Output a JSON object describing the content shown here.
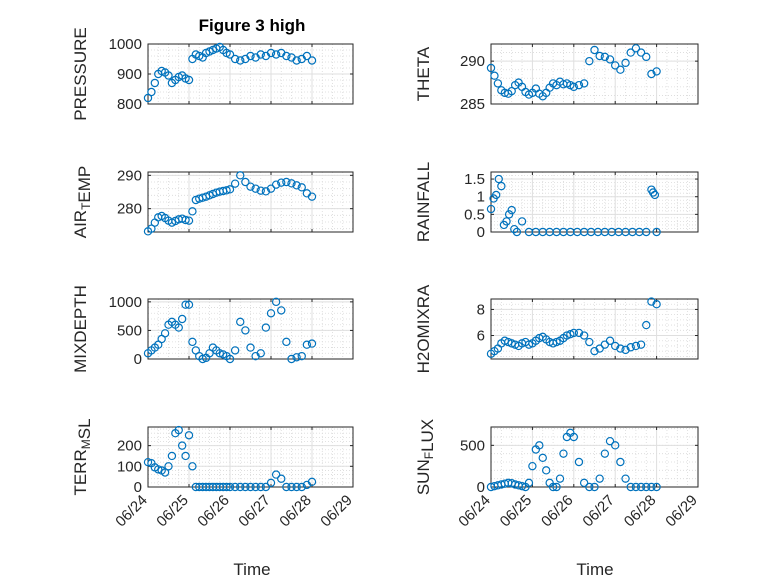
{
  "figure": {
    "title": "Figure 3 high",
    "marker_color": "#0072BD",
    "time_ticks": [
      "06/24",
      "06/25",
      "06/26",
      "06/27",
      "06/28",
      "06/29"
    ],
    "xlabel": "Time"
  },
  "chart_data": [
    {
      "type": "scatter",
      "name": "pressure",
      "ylabel": "PRESSURE",
      "yticks": [
        800,
        900,
        1000
      ],
      "ytick_labels": [
        "800",
        "900",
        "1000"
      ],
      "ylim": [
        800,
        1000
      ],
      "xlim": [
        "06/24",
        "06/29"
      ],
      "grid": true,
      "minor_grid": true,
      "x": [
        "06/24 00:00",
        "06/24 02:00",
        "06/24 04:00",
        "06/24 06:00",
        "06/24 08:00",
        "06/24 10:00",
        "06/24 12:00",
        "06/24 14:00",
        "06/24 16:00",
        "06/24 18:00",
        "06/24 20:00",
        "06/24 22:00",
        "06/25 00:00",
        "06/25 02:00",
        "06/25 04:00",
        "06/25 06:00",
        "06/25 08:00",
        "06/25 10:00",
        "06/25 12:00",
        "06/25 14:00",
        "06/25 16:00",
        "06/25 18:00",
        "06/25 20:00",
        "06/25 22:00",
        "06/26 00:00",
        "06/26 03:00",
        "06/26 06:00",
        "06/26 09:00",
        "06/26 12:00",
        "06/26 15:00",
        "06/26 18:00",
        "06/26 21:00",
        "06/27 00:00",
        "06/27 03:00",
        "06/27 06:00",
        "06/27 09:00",
        "06/27 12:00",
        "06/27 15:00",
        "06/27 18:00",
        "06/27 21:00",
        "06/28 00:00"
      ],
      "y": [
        820,
        840,
        870,
        900,
        910,
        905,
        895,
        870,
        880,
        890,
        895,
        885,
        880,
        950,
        965,
        960,
        955,
        970,
        975,
        980,
        985,
        990,
        980,
        970,
        965,
        950,
        945,
        950,
        960,
        955,
        965,
        960,
        970,
        965,
        970,
        960,
        955,
        945,
        950,
        960,
        945
      ]
    },
    {
      "type": "scatter",
      "name": "theta",
      "ylabel": "THETA",
      "yticks": [
        285,
        290
      ],
      "ytick_labels": [
        "285",
        "290"
      ],
      "ylim": [
        285,
        292
      ],
      "xlim": [
        "06/24",
        "06/29"
      ],
      "grid": true,
      "minor_grid": true,
      "x": [
        "06/24 00:00",
        "06/24 02:00",
        "06/24 04:00",
        "06/24 06:00",
        "06/24 08:00",
        "06/24 10:00",
        "06/24 12:00",
        "06/24 14:00",
        "06/24 16:00",
        "06/24 18:00",
        "06/24 20:00",
        "06/24 22:00",
        "06/25 00:00",
        "06/25 02:00",
        "06/25 04:00",
        "06/25 06:00",
        "06/25 08:00",
        "06/25 10:00",
        "06/25 12:00",
        "06/25 14:00",
        "06/25 16:00",
        "06/25 18:00",
        "06/25 20:00",
        "06/25 22:00",
        "06/26 00:00",
        "06/26 03:00",
        "06/26 06:00",
        "06/26 09:00",
        "06/26 12:00",
        "06/26 15:00",
        "06/26 18:00",
        "06/26 21:00",
        "06/27 00:00",
        "06/27 03:00",
        "06/27 06:00",
        "06/27 09:00",
        "06/27 12:00",
        "06/27 15:00",
        "06/27 18:00",
        "06/27 21:00",
        "06/28 00:00"
      ],
      "y": [
        289.2,
        288.3,
        287.4,
        286.6,
        286.3,
        286.2,
        286.5,
        287.2,
        287.5,
        287.0,
        286.4,
        286.1,
        286.3,
        286.8,
        286.2,
        285.9,
        286.3,
        286.9,
        287.4,
        287.2,
        287.6,
        287.3,
        287.4,
        287.2,
        287.0,
        287.2,
        287.4,
        290.0,
        291.3,
        290.6,
        290.5,
        290.2,
        289.5,
        289.0,
        289.8,
        291.0,
        291.5,
        291.0,
        290.5,
        288.5,
        288.8
      ]
    },
    {
      "type": "scatter",
      "name": "air_temp",
      "ylabel": "AIR_TEMP",
      "yticks": [
        280,
        290
      ],
      "ytick_labels": [
        "280",
        "290"
      ],
      "ylim": [
        273,
        291
      ],
      "xlim": [
        "06/24",
        "06/29"
      ],
      "grid": true,
      "minor_grid": true,
      "x": [
        "06/24 00:00",
        "06/24 02:00",
        "06/24 04:00",
        "06/24 06:00",
        "06/24 08:00",
        "06/24 10:00",
        "06/24 12:00",
        "06/24 14:00",
        "06/24 16:00",
        "06/24 18:00",
        "06/24 20:00",
        "06/24 22:00",
        "06/25 00:00",
        "06/25 02:00",
        "06/25 04:00",
        "06/25 06:00",
        "06/25 08:00",
        "06/25 10:00",
        "06/25 12:00",
        "06/25 14:00",
        "06/25 16:00",
        "06/25 18:00",
        "06/25 20:00",
        "06/25 22:00",
        "06/26 00:00",
        "06/26 03:00",
        "06/26 06:00",
        "06/26 09:00",
        "06/26 12:00",
        "06/26 15:00",
        "06/26 18:00",
        "06/26 21:00",
        "06/27 00:00",
        "06/27 03:00",
        "06/27 06:00",
        "06/27 09:00",
        "06/27 12:00",
        "06/27 15:00",
        "06/27 18:00",
        "06/27 21:00",
        "06/28 00:00"
      ],
      "y": [
        273.2,
        274.0,
        275.8,
        277.4,
        277.8,
        277.2,
        276.4,
        275.8,
        276.3,
        276.8,
        277.0,
        276.6,
        276.4,
        279.2,
        282.6,
        283.0,
        283.3,
        283.6,
        284.0,
        284.4,
        284.8,
        285.1,
        285.3,
        285.5,
        285.8,
        287.5,
        290.0,
        288.0,
        286.6,
        286.0,
        285.4,
        285.2,
        286.0,
        287.2,
        287.8,
        288.0,
        287.6,
        287.0,
        286.4,
        284.6,
        283.6
      ]
    },
    {
      "type": "scatter",
      "name": "rainfall",
      "ylabel": "RAINFALL",
      "yticks": [
        0,
        0.5,
        1,
        1.5
      ],
      "ytick_labels": [
        "0",
        "0.5",
        "1",
        "1.5"
      ],
      "ylim": [
        0,
        1.7
      ],
      "xlim": [
        "06/24",
        "06/29"
      ],
      "grid": true,
      "minor_grid": true,
      "x": [
        "06/24 00:00",
        "06/24 01:30",
        "06/24 03:00",
        "06/24 04:30",
        "06/24 06:00",
        "06/24 07:30",
        "06/24 09:00",
        "06/24 10:30",
        "06/24 12:00",
        "06/24 13:30",
        "06/24 15:00",
        "06/24 18:00",
        "06/24 22:00",
        "06/25 02:00",
        "06/25 06:00",
        "06/25 10:00",
        "06/25 14:00",
        "06/25 18:00",
        "06/25 22:00",
        "06/26 02:00",
        "06/26 06:00",
        "06/26 10:00",
        "06/26 14:00",
        "06/26 18:00",
        "06/26 22:00",
        "06/27 02:00",
        "06/27 06:00",
        "06/27 10:00",
        "06/27 14:00",
        "06/27 18:00",
        "06/27 21:00",
        "06/27 22:00",
        "06/27 23:00",
        "06/28 00:00"
      ],
      "y": [
        0.65,
        0.95,
        1.05,
        1.5,
        1.3,
        0.2,
        0.3,
        0.5,
        0.62,
        0.08,
        0.0,
        0.3,
        0.0,
        0.0,
        0.0,
        0.0,
        0.0,
        0.0,
        0.0,
        0.0,
        0.0,
        0.0,
        0.0,
        0.0,
        0.0,
        0.0,
        0.0,
        0.0,
        0.0,
        0.0,
        1.2,
        1.12,
        1.05,
        0.0
      ]
    },
    {
      "type": "scatter",
      "name": "mixdepth",
      "ylabel": "MIXDEPTH",
      "yticks": [
        0,
        500,
        1000
      ],
      "ytick_labels": [
        "0",
        "500",
        "1000"
      ],
      "ylim": [
        0,
        1050
      ],
      "xlim": [
        "06/24",
        "06/29"
      ],
      "grid": true,
      "minor_grid": true,
      "x": [
        "06/24 00:00",
        "06/24 02:00",
        "06/24 04:00",
        "06/24 06:00",
        "06/24 08:00",
        "06/24 10:00",
        "06/24 12:00",
        "06/24 14:00",
        "06/24 16:00",
        "06/24 18:00",
        "06/24 20:00",
        "06/24 22:00",
        "06/25 00:00",
        "06/25 02:00",
        "06/25 04:00",
        "06/25 06:00",
        "06/25 08:00",
        "06/25 10:00",
        "06/25 12:00",
        "06/25 14:00",
        "06/25 16:00",
        "06/25 18:00",
        "06/25 20:00",
        "06/25 22:00",
        "06/26 00:00",
        "06/26 03:00",
        "06/26 06:00",
        "06/26 09:00",
        "06/26 12:00",
        "06/26 15:00",
        "06/26 18:00",
        "06/26 21:00",
        "06/27 00:00",
        "06/27 03:00",
        "06/27 06:00",
        "06/27 09:00",
        "06/27 12:00",
        "06/27 15:00",
        "06/27 18:00",
        "06/27 21:00",
        "06/28 00:00"
      ],
      "y": [
        100,
        150,
        200,
        250,
        350,
        450,
        600,
        650,
        600,
        550,
        700,
        950,
        950,
        300,
        150,
        50,
        0,
        20,
        100,
        200,
        150,
        100,
        80,
        50,
        0,
        150,
        650,
        500,
        200,
        50,
        100,
        550,
        800,
        1000,
        850,
        300,
        0,
        30,
        50,
        250,
        270
      ]
    },
    {
      "type": "scatter",
      "name": "h2omixra",
      "ylabel": "H2OMIXRA",
      "yticks": [
        6,
        8
      ],
      "ytick_labels": [
        "6",
        "8"
      ],
      "ylim": [
        4.2,
        8.8
      ],
      "xlim": [
        "06/24",
        "06/29"
      ],
      "grid": true,
      "minor_grid": true,
      "x": [
        "06/24 00:00",
        "06/24 02:00",
        "06/24 04:00",
        "06/24 06:00",
        "06/24 08:00",
        "06/24 10:00",
        "06/24 12:00",
        "06/24 14:00",
        "06/24 16:00",
        "06/24 18:00",
        "06/24 20:00",
        "06/24 22:00",
        "06/25 00:00",
        "06/25 02:00",
        "06/25 04:00",
        "06/25 06:00",
        "06/25 08:00",
        "06/25 10:00",
        "06/25 12:00",
        "06/25 14:00",
        "06/25 16:00",
        "06/25 18:00",
        "06/25 20:00",
        "06/25 22:00",
        "06/26 00:00",
        "06/26 03:00",
        "06/26 06:00",
        "06/26 09:00",
        "06/26 12:00",
        "06/26 15:00",
        "06/26 18:00",
        "06/26 21:00",
        "06/27 00:00",
        "06/27 03:00",
        "06/27 06:00",
        "06/27 09:00",
        "06/27 12:00",
        "06/27 15:00",
        "06/27 18:00",
        "06/27 21:00",
        "06/28 00:00"
      ],
      "y": [
        4.6,
        4.8,
        5.0,
        5.4,
        5.6,
        5.5,
        5.4,
        5.3,
        5.2,
        5.4,
        5.5,
        5.3,
        5.4,
        5.6,
        5.8,
        5.9,
        5.7,
        5.5,
        5.4,
        5.5,
        5.6,
        5.8,
        6.0,
        6.1,
        6.2,
        6.2,
        6.0,
        5.5,
        4.8,
        5.0,
        5.3,
        5.6,
        5.2,
        5.0,
        4.9,
        5.1,
        5.2,
        5.3,
        6.8,
        8.6,
        8.4
      ]
    },
    {
      "type": "scatter",
      "name": "terr_msl",
      "ylabel": "TERR_MSL",
      "yticks": [
        0,
        100,
        200
      ],
      "ytick_labels": [
        "0",
        "100",
        "200"
      ],
      "ylim": [
        0,
        290
      ],
      "xlim": [
        "06/24",
        "06/29"
      ],
      "grid": true,
      "minor_grid": true,
      "x": [
        "06/24 00:00",
        "06/24 02:00",
        "06/24 04:00",
        "06/24 06:00",
        "06/24 08:00",
        "06/24 10:00",
        "06/24 12:00",
        "06/24 14:00",
        "06/24 16:00",
        "06/24 18:00",
        "06/24 20:00",
        "06/24 22:00",
        "06/25 00:00",
        "06/25 02:00",
        "06/25 04:00",
        "06/25 06:00",
        "06/25 08:00",
        "06/25 10:00",
        "06/25 12:00",
        "06/25 14:00",
        "06/25 16:00",
        "06/25 18:00",
        "06/25 20:00",
        "06/25 22:00",
        "06/26 00:00",
        "06/26 03:00",
        "06/26 06:00",
        "06/26 09:00",
        "06/26 12:00",
        "06/26 15:00",
        "06/26 18:00",
        "06/26 21:00",
        "06/27 00:00",
        "06/27 03:00",
        "06/27 06:00",
        "06/27 09:00",
        "06/27 12:00",
        "06/27 15:00",
        "06/27 18:00",
        "06/27 21:00",
        "06/28 00:00"
      ],
      "y": [
        120,
        115,
        95,
        85,
        80,
        70,
        100,
        150,
        260,
        275,
        200,
        150,
        250,
        100,
        0,
        0,
        0,
        0,
        0,
        0,
        0,
        0,
        0,
        0,
        0,
        0,
        0,
        0,
        0,
        0,
        0,
        0,
        20,
        60,
        40,
        0,
        0,
        0,
        0,
        10,
        25
      ]
    },
    {
      "type": "scatter",
      "name": "sun_flux",
      "ylabel": "SUN_FLUX",
      "yticks": [
        0,
        500
      ],
      "ytick_labels": [
        "0",
        "500"
      ],
      "ylim": [
        0,
        720
      ],
      "xlim": [
        "06/24",
        "06/29"
      ],
      "grid": true,
      "minor_grid": true,
      "x": [
        "06/24 00:00",
        "06/24 02:00",
        "06/24 04:00",
        "06/24 06:00",
        "06/24 08:00",
        "06/24 10:00",
        "06/24 12:00",
        "06/24 14:00",
        "06/24 16:00",
        "06/24 18:00",
        "06/24 20:00",
        "06/24 22:00",
        "06/25 00:00",
        "06/25 02:00",
        "06/25 04:00",
        "06/25 06:00",
        "06/25 08:00",
        "06/25 10:00",
        "06/25 12:00",
        "06/25 14:00",
        "06/25 16:00",
        "06/25 18:00",
        "06/25 20:00",
        "06/25 22:00",
        "06/26 00:00",
        "06/26 03:00",
        "06/26 06:00",
        "06/26 09:00",
        "06/26 12:00",
        "06/26 15:00",
        "06/26 18:00",
        "06/26 21:00",
        "06/27 00:00",
        "06/27 03:00",
        "06/27 06:00",
        "06/27 09:00",
        "06/27 12:00",
        "06/27 15:00",
        "06/27 18:00",
        "06/27 21:00",
        "06/28 00:00"
      ],
      "y": [
        0,
        10,
        20,
        30,
        40,
        50,
        45,
        30,
        20,
        10,
        0,
        50,
        250,
        450,
        500,
        350,
        200,
        50,
        0,
        0,
        100,
        400,
        600,
        650,
        600,
        300,
        50,
        0,
        0,
        100,
        400,
        550,
        500,
        300,
        100,
        0,
        0,
        0,
        0,
        0,
        0
      ]
    }
  ]
}
